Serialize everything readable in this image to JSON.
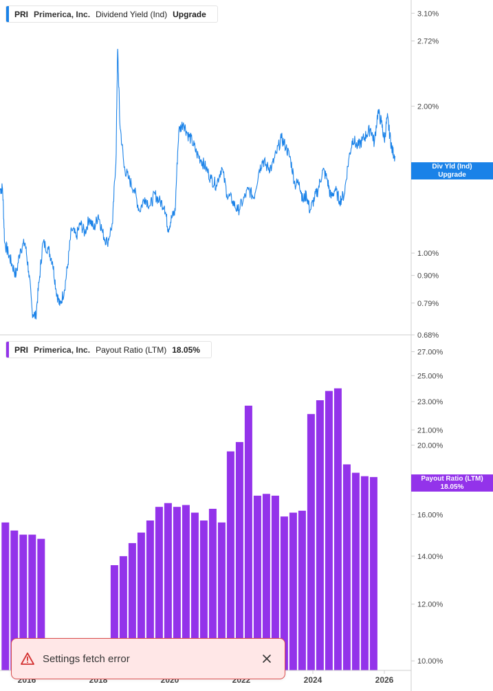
{
  "colors": {
    "yield_line": "#1a82e8",
    "payout_bar": "#9333ea",
    "axis": "#cccccc",
    "tick_text": "#444444",
    "toast_border": "#d94a4a",
    "toast_bg": "#ffe7e7"
  },
  "top_legend": {
    "ticker": "PRI",
    "company": "Primerica, Inc.",
    "metric": "Dividend Yield (Ind)",
    "value": "Upgrade"
  },
  "bottom_legend": {
    "ticker": "PRI",
    "company": "Primerica, Inc.",
    "metric": "Payout Ratio (LTM)",
    "value": "18.05%"
  },
  "top_tag": {
    "line1": "Div Yld (Ind)",
    "line2": "Upgrade"
  },
  "bottom_tag": {
    "line1": "Payout Ratio (LTM)",
    "line2": "18.05%"
  },
  "toast": {
    "message": "Settings fetch error",
    "icon": "warning-triangle-icon",
    "close_icon": "close-icon"
  },
  "chart_data": [
    {
      "type": "line",
      "scale": "log",
      "y_ticks": [
        "3.10%",
        "2.72%",
        "2.00%",
        "1.00%",
        "0.90%",
        "0.79%",
        "0.68%"
      ],
      "y_tick_values": [
        3.1,
        2.72,
        2.0,
        1.0,
        0.9,
        0.79,
        0.68
      ],
      "ylim": [
        0.68,
        3.3
      ],
      "xlim": [
        2015.25,
        2026.75
      ],
      "series": [
        {
          "points": [
            [
              2015.25,
              1.35
            ],
            [
              2015.32,
              1.36
            ],
            [
              2015.38,
              1.05
            ],
            [
              2015.48,
              1.0
            ],
            [
              2015.58,
              0.95
            ],
            [
              2015.7,
              0.9
            ],
            [
              2015.82,
              1.02
            ],
            [
              2015.95,
              1.05
            ],
            [
              2016.05,
              0.92
            ],
            [
              2016.15,
              0.76
            ],
            [
              2016.25,
              0.74
            ],
            [
              2016.35,
              0.88
            ],
            [
              2016.45,
              1.05
            ],
            [
              2016.6,
              1.02
            ],
            [
              2016.72,
              0.96
            ],
            [
              2016.82,
              0.84
            ],
            [
              2016.92,
              0.78
            ],
            [
              2017.05,
              0.84
            ],
            [
              2017.15,
              0.95
            ],
            [
              2017.25,
              1.12
            ],
            [
              2017.38,
              1.08
            ],
            [
              2017.5,
              1.15
            ],
            [
              2017.62,
              1.1
            ],
            [
              2017.75,
              1.18
            ],
            [
              2017.88,
              1.12
            ],
            [
              2018.0,
              1.2
            ],
            [
              2018.12,
              1.1
            ],
            [
              2018.25,
              1.05
            ],
            [
              2018.4,
              1.15
            ],
            [
              2018.5,
              1.6
            ],
            [
              2018.54,
              2.62
            ],
            [
              2018.6,
              1.85
            ],
            [
              2018.72,
              1.5
            ],
            [
              2018.85,
              1.42
            ],
            [
              2019.0,
              1.35
            ],
            [
              2019.15,
              1.22
            ],
            [
              2019.3,
              1.3
            ],
            [
              2019.45,
              1.25
            ],
            [
              2019.58,
              1.32
            ],
            [
              2019.7,
              1.28
            ],
            [
              2019.85,
              1.25
            ],
            [
              2019.95,
              1.12
            ],
            [
              2020.05,
              1.18
            ],
            [
              2020.15,
              1.22
            ],
            [
              2020.25,
              1.78
            ],
            [
              2020.38,
              1.85
            ],
            [
              2020.5,
              1.75
            ],
            [
              2020.62,
              1.7
            ],
            [
              2020.75,
              1.6
            ],
            [
              2020.88,
              1.55
            ],
            [
              2021.0,
              1.5
            ],
            [
              2021.15,
              1.42
            ],
            [
              2021.3,
              1.38
            ],
            [
              2021.45,
              1.5
            ],
            [
              2021.6,
              1.32
            ],
            [
              2021.75,
              1.28
            ],
            [
              2021.9,
              1.22
            ],
            [
              2022.05,
              1.28
            ],
            [
              2022.2,
              1.35
            ],
            [
              2022.35,
              1.3
            ],
            [
              2022.5,
              1.48
            ],
            [
              2022.6,
              1.55
            ],
            [
              2022.72,
              1.5
            ],
            [
              2022.85,
              1.5
            ],
            [
              2022.98,
              1.6
            ],
            [
              2023.12,
              1.72
            ],
            [
              2023.25,
              1.65
            ],
            [
              2023.38,
              1.55
            ],
            [
              2023.5,
              1.38
            ],
            [
              2023.62,
              1.4
            ],
            [
              2023.72,
              1.28
            ],
            [
              2023.82,
              1.32
            ],
            [
              2023.92,
              1.22
            ],
            [
              2024.05,
              1.3
            ],
            [
              2024.15,
              1.35
            ],
            [
              2024.28,
              1.48
            ],
            [
              2024.4,
              1.42
            ],
            [
              2024.5,
              1.3
            ],
            [
              2024.62,
              1.35
            ],
            [
              2024.75,
              1.28
            ],
            [
              2024.88,
              1.32
            ],
            [
              2025.0,
              1.55
            ],
            [
              2025.12,
              1.72
            ],
            [
              2025.25,
              1.65
            ],
            [
              2025.38,
              1.7
            ],
            [
              2025.5,
              1.75
            ],
            [
              2025.62,
              1.8
            ],
            [
              2025.72,
              1.68
            ],
            [
              2025.82,
              1.95
            ],
            [
              2025.92,
              1.85
            ],
            [
              2026.0,
              1.7
            ],
            [
              2026.08,
              1.9
            ],
            [
              2026.15,
              1.75
            ],
            [
              2026.22,
              1.62
            ],
            [
              2026.3,
              1.58
            ]
          ]
        }
      ],
      "x_tick_labels": [
        "2016",
        "2018",
        "2020",
        "2022",
        "2024",
        "2026"
      ],
      "x_tick_values": [
        2016.0,
        2018.0,
        2020.0,
        2022.0,
        2024.0,
        2026.0
      ]
    },
    {
      "type": "bar",
      "scale": "log",
      "y_ticks": [
        "27.00%",
        "25.00%",
        "23.00%",
        "21.00%",
        "20.00%",
        "16.00%",
        "14.00%",
        "12.00%",
        "10.00%"
      ],
      "y_tick_values": [
        27.0,
        25.0,
        23.0,
        21.0,
        20.0,
        16.0,
        14.0,
        12.0,
        10.0
      ],
      "ylim": [
        9.7,
        28.5
      ],
      "xlim": [
        2015.25,
        2026.75
      ],
      "series": [
        {
          "x": [
            2015.4,
            2015.65,
            2015.9,
            2016.15,
            2016.4,
            2018.45,
            2018.7,
            2018.95,
            2019.2,
            2019.45,
            2019.7,
            2019.95,
            2020.2,
            2020.45,
            2020.7,
            2020.95,
            2021.2,
            2021.45,
            2021.7,
            2021.95,
            2022.2,
            2022.45,
            2022.7,
            2022.95,
            2023.2,
            2023.45,
            2023.7,
            2023.95,
            2024.2,
            2024.45,
            2024.7,
            2024.95,
            2025.2,
            2025.45,
            2025.7,
            2025.95,
            2026.2
          ],
          "values": [
            15.6,
            15.2,
            15.0,
            15.0,
            14.8,
            13.6,
            14.0,
            14.6,
            15.1,
            15.7,
            16.4,
            16.6,
            16.4,
            16.5,
            16.1,
            15.7,
            16.3,
            15.6,
            19.6,
            20.2,
            22.7,
            17.0,
            17.1,
            17.0,
            15.9,
            16.1,
            16.2,
            22.1,
            23.1,
            23.8,
            24.0,
            18.8,
            18.3,
            18.1,
            18.05,
            0,
            0
          ]
        }
      ]
    }
  ]
}
